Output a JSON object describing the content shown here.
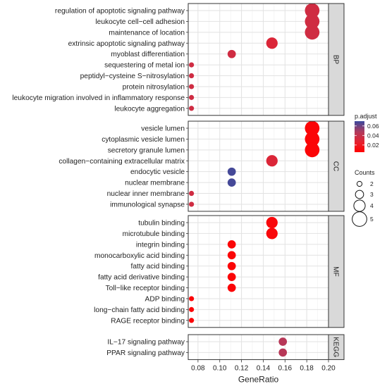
{
  "chart_data": {
    "type": "scatter",
    "xlabel": "GeneRatio",
    "x_ticks": [
      0.08,
      0.1,
      0.12,
      0.14,
      0.16,
      0.18,
      0.2
    ],
    "xlim": [
      0.071,
      0.2
    ],
    "color_legend": {
      "title": "p.adjust",
      "ticks": [
        0.06,
        0.04,
        0.02
      ],
      "range": [
        0.005,
        0.07
      ],
      "low_color": "#ff0000",
      "high_color": "#3a4a9e"
    },
    "size_legend": {
      "title": "Counts",
      "values": [
        2,
        3,
        4,
        5
      ]
    },
    "panels": [
      {
        "name": "BP",
        "terms": [
          {
            "label": "regulation of apoptotic signaling pathway",
            "x": 0.185,
            "count": 5,
            "p_adjust": 0.035
          },
          {
            "label": "leukocyte cell−cell adhesion",
            "x": 0.185,
            "count": 5,
            "p_adjust": 0.035
          },
          {
            "label": "maintenance of location",
            "x": 0.185,
            "count": 5,
            "p_adjust": 0.035
          },
          {
            "label": "extrinsic apoptotic signaling pathway",
            "x": 0.148,
            "count": 4,
            "p_adjust": 0.03
          },
          {
            "label": "myoblast differentiation",
            "x": 0.111,
            "count": 3,
            "p_adjust": 0.035
          },
          {
            "label": "sequestering of metal ion",
            "x": 0.074,
            "count": 2,
            "p_adjust": 0.035
          },
          {
            "label": "peptidyl−cysteine S−nitrosylation",
            "x": 0.074,
            "count": 2,
            "p_adjust": 0.035
          },
          {
            "label": "protein nitrosylation",
            "x": 0.074,
            "count": 2,
            "p_adjust": 0.035
          },
          {
            "label": "leukocyte migration involved in inflammatory response",
            "x": 0.074,
            "count": 2,
            "p_adjust": 0.035
          },
          {
            "label": "leukocyte aggregation",
            "x": 0.074,
            "count": 2,
            "p_adjust": 0.035
          }
        ]
      },
      {
        "name": "CC",
        "terms": [
          {
            "label": "vesicle lumen",
            "x": 0.185,
            "count": 5,
            "p_adjust": 0.008
          },
          {
            "label": "cytoplasmic vesicle lumen",
            "x": 0.185,
            "count": 5,
            "p_adjust": 0.008
          },
          {
            "label": "secretory granule lumen",
            "x": 0.185,
            "count": 5,
            "p_adjust": 0.008
          },
          {
            "label": "collagen−containing extracellular matrix",
            "x": 0.148,
            "count": 4,
            "p_adjust": 0.03
          },
          {
            "label": "endocytic vesicle",
            "x": 0.111,
            "count": 3,
            "p_adjust": 0.068
          },
          {
            "label": "nuclear membrane",
            "x": 0.111,
            "count": 3,
            "p_adjust": 0.068
          },
          {
            "label": "nuclear inner membrane",
            "x": 0.074,
            "count": 2,
            "p_adjust": 0.035
          },
          {
            "label": "immunological synapse",
            "x": 0.074,
            "count": 2,
            "p_adjust": 0.035
          }
        ]
      },
      {
        "name": "MF",
        "terms": [
          {
            "label": "tubulin binding",
            "x": 0.148,
            "count": 4,
            "p_adjust": 0.01
          },
          {
            "label": "microtubule binding",
            "x": 0.148,
            "count": 4,
            "p_adjust": 0.01
          },
          {
            "label": "integrin binding",
            "x": 0.111,
            "count": 3,
            "p_adjust": 0.008
          },
          {
            "label": "monocarboxylic acid binding",
            "x": 0.111,
            "count": 3,
            "p_adjust": 0.008
          },
          {
            "label": "fatty acid binding",
            "x": 0.111,
            "count": 3,
            "p_adjust": 0.008
          },
          {
            "label": "fatty acid derivative binding",
            "x": 0.111,
            "count": 3,
            "p_adjust": 0.008
          },
          {
            "label": "Toll−like receptor binding",
            "x": 0.111,
            "count": 3,
            "p_adjust": 0.008
          },
          {
            "label": "ADP binding",
            "x": 0.074,
            "count": 2,
            "p_adjust": 0.008
          },
          {
            "label": "long−chain fatty acid binding",
            "x": 0.074,
            "count": 2,
            "p_adjust": 0.008
          },
          {
            "label": "RAGE receptor binding",
            "x": 0.074,
            "count": 2,
            "p_adjust": 0.008
          }
        ]
      },
      {
        "name": "KEGG",
        "terms": [
          {
            "label": "IL−17 signaling pathway",
            "x": 0.158,
            "count": 3,
            "p_adjust": 0.045
          },
          {
            "label": "PPAR signaling pathway",
            "x": 0.158,
            "count": 3,
            "p_adjust": 0.045
          }
        ]
      }
    ]
  }
}
